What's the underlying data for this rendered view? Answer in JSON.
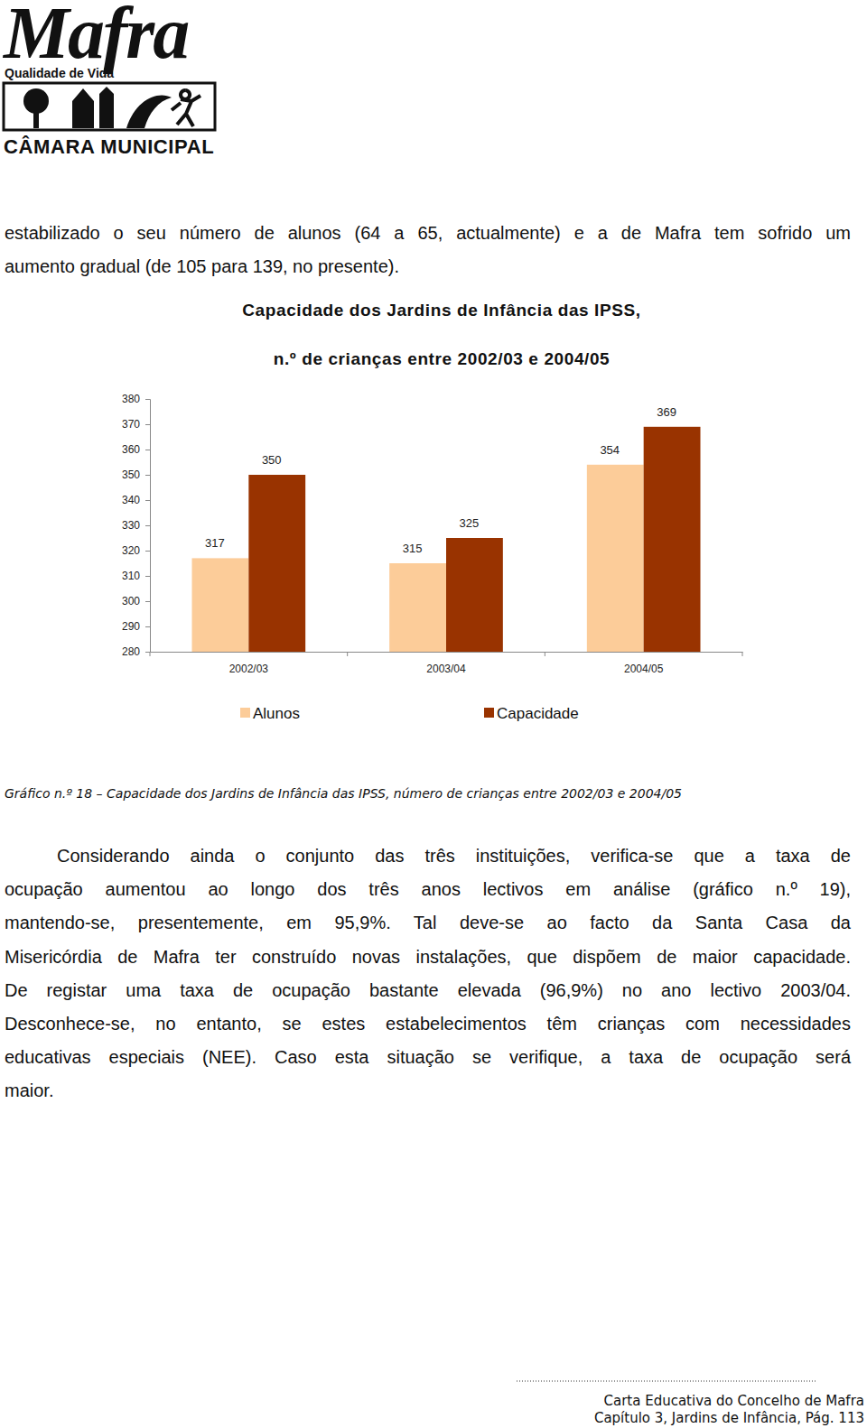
{
  "header": {
    "logo_title": "Mafra",
    "logo_subtitle": "Qualidade de Vida",
    "logo_org": "CÂMARA MUNICIPAL"
  },
  "paragraphs": [
    {
      "lines": [
        "estabilizado o seu número de alunos (64 a 65, actualmente) e a de Mafra tem sofrido um",
        "aumento gradual (de 105 para 139, no presente)."
      ]
    },
    {
      "lines": [
        "Considerando ainda o conjunto das três instituições, verifica-se que a taxa de",
        "ocupação aumentou ao longo dos três anos lectivos em análise (gráfico n.º 19),",
        "mantendo-se, presentemente, em 95,9%. Tal deve-se ao facto da Santa Casa da",
        "Misericórdia de Mafra ter construído novas instalações, que dispõem de maior capacidade.",
        "De registar uma taxa de ocupação bastante elevada (96,9%) no ano lectivo 2003/04.",
        "Desconhece-se, no entanto, se estes estabelecimentos têm crianças com necessidades",
        "educativas especiais (NEE). Caso esta situação se verifique, a taxa de ocupação será",
        "maior."
      ]
    }
  ],
  "chart_data": {
    "type": "bar",
    "title": [
      "Capacidade dos Jardins de Infância das IPSS,",
      "n.º de crianças entre 2002/03 e 2004/05"
    ],
    "categories": [
      "2002/03",
      "2003/04",
      "2004/05"
    ],
    "series": [
      {
        "name": "Alunos",
        "color": "#fccc99",
        "values": [
          317,
          315,
          354
        ]
      },
      {
        "name": "Capacidade",
        "color": "#993300",
        "values": [
          350,
          325,
          369
        ]
      }
    ],
    "ylim": [
      280,
      380
    ],
    "yticks": [
      280,
      290,
      300,
      310,
      320,
      330,
      340,
      350,
      360,
      370,
      380
    ],
    "data_labels": true,
    "legend": "bottom",
    "grid": false
  },
  "caption": "Gráfico n.º 18 – Capacidade dos Jardins de Infância das IPSS, número de crianças entre 2002/03 e 2004/05",
  "footer": {
    "lines": [
      "Carta Educativa do Concelho de Mafra",
      "Capítulo 3, Jardins de Infância, Pág. 113"
    ]
  }
}
